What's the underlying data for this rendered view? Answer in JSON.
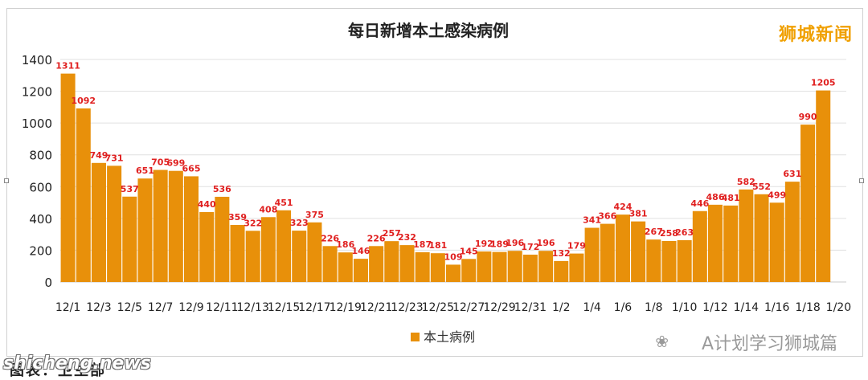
{
  "brand": "狮城新闻",
  "watermark": "A计划学习狮城篇",
  "watermark_icon": "wechat-icon",
  "site": "shicheng.news",
  "caption": "图表：卫生部",
  "colors": {
    "bar": "#e8900a",
    "label": "#e02020",
    "grid": "#e0e0e0"
  },
  "chart_data": {
    "type": "bar",
    "title": "每日新增本土感染病例",
    "categories": [
      "12/1",
      "12/2",
      "12/3",
      "12/4",
      "12/5",
      "12/6",
      "12/7",
      "12/8",
      "12/9",
      "12/10",
      "12/11",
      "12/12",
      "12/13",
      "12/14",
      "12/15",
      "12/16",
      "12/17",
      "12/18",
      "12/19",
      "12/20",
      "12/21",
      "12/22",
      "12/23",
      "12/24",
      "12/25",
      "12/26",
      "12/27",
      "12/28",
      "12/29",
      "12/30",
      "12/31",
      "1/1",
      "1/2",
      "1/3",
      "1/4",
      "1/5",
      "1/6",
      "1/7",
      "1/8",
      "1/9",
      "1/10",
      "1/11",
      "1/12",
      "1/13",
      "1/14",
      "1/15",
      "1/16",
      "1/17",
      "1/18",
      "1/19",
      "1/20"
    ],
    "tick_labels": [
      "12/1",
      "12/3",
      "12/5",
      "12/7",
      "12/9",
      "12/11",
      "12/13",
      "12/15",
      "12/17",
      "12/19",
      "12/21",
      "12/23",
      "12/25",
      "12/27",
      "12/29",
      "12/31",
      "1/2",
      "1/4",
      "1/6",
      "1/8",
      "1/10",
      "1/12",
      "1/14",
      "1/16",
      "1/18",
      "1/20"
    ],
    "series": [
      {
        "name": "本土病例",
        "values": [
          1311,
          1092,
          749,
          731,
          537,
          651,
          705,
          699,
          665,
          440,
          536,
          359,
          322,
          408,
          451,
          323,
          375,
          226,
          186,
          146,
          226,
          257,
          232,
          187,
          181,
          109,
          145,
          192,
          189,
          196,
          172,
          196,
          132,
          179,
          341,
          366,
          424,
          381,
          267,
          258,
          263,
          446,
          486,
          481,
          582,
          552,
          499,
          631,
          990,
          1205,
          null
        ]
      }
    ],
    "ylim": [
      0,
      1400
    ],
    "yticks": [
      0,
      200,
      400,
      600,
      800,
      1000,
      1200,
      1400
    ],
    "grid": true,
    "legend": "bottom"
  }
}
